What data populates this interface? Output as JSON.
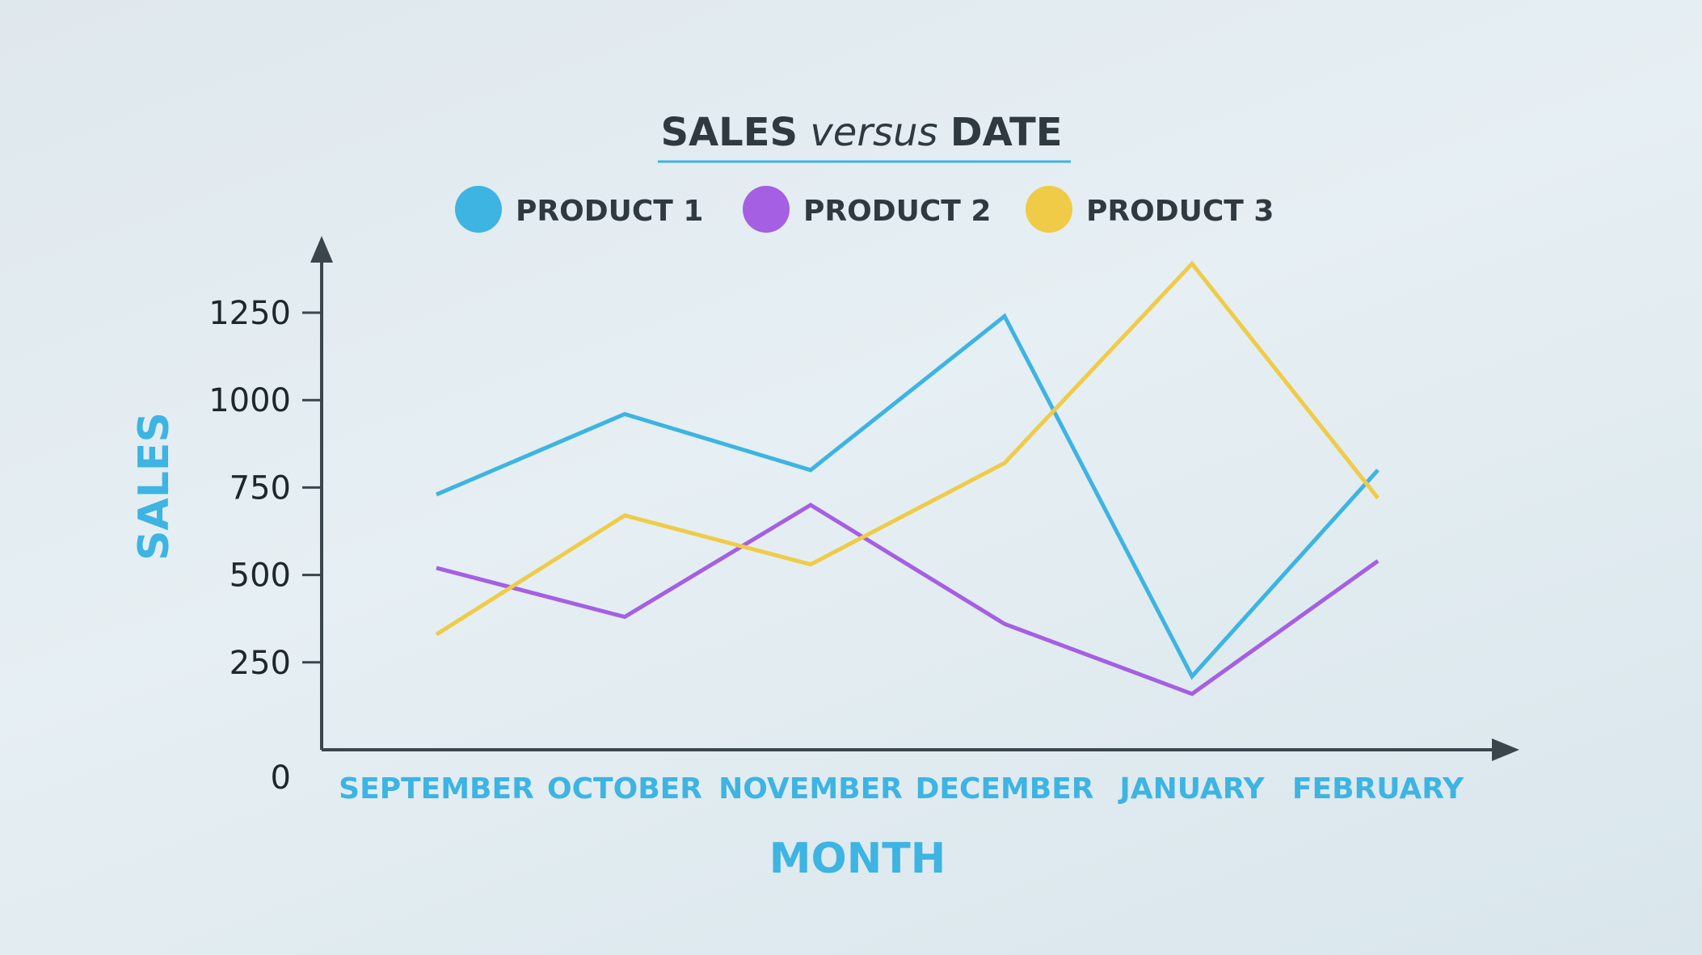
{
  "chart_data": {
    "type": "line",
    "title_parts": [
      {
        "text": "SALES",
        "style": "bold"
      },
      {
        "text": " versus ",
        "style": "italic"
      },
      {
        "text": "DATE",
        "style": "bold"
      }
    ],
    "xlabel": "MONTH",
    "ylabel": "SALES",
    "categories": [
      "SEPTEMBER",
      "OCTOBER",
      "NOVEMBER",
      "DECEMBER",
      "JANUARY",
      "FEBRUARY"
    ],
    "y_ticks": [
      0,
      250,
      500,
      750,
      1000,
      1250
    ],
    "ylim": [
      0,
      1250
    ],
    "grid": false,
    "legend_position": "top-center",
    "series": [
      {
        "name": "PRODUCT 1",
        "color": "#3db4e2",
        "values": [
          730,
          960,
          800,
          1240,
          210,
          800
        ]
      },
      {
        "name": "PRODUCT 2",
        "color": "#a55fe3",
        "values": [
          520,
          380,
          700,
          360,
          160,
          540
        ]
      },
      {
        "name": "PRODUCT 3",
        "color": "#f0cb48",
        "values": [
          330,
          670,
          530,
          820,
          1390,
          720
        ]
      }
    ],
    "axis_color": "#3a464c"
  }
}
